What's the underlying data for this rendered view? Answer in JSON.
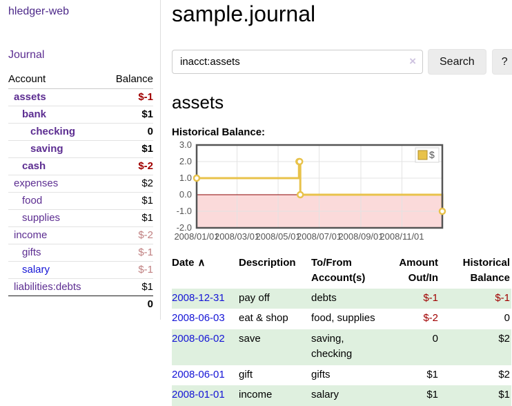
{
  "app": {
    "brand": "hledger-web"
  },
  "sidebar": {
    "journal_link": "Journal",
    "account_header": "Account",
    "balance_header": "Balance",
    "rows": [
      {
        "name": "assets",
        "balance": "$-1"
      },
      {
        "name": "bank",
        "balance": "$1"
      },
      {
        "name": "checking",
        "balance": "0"
      },
      {
        "name": "saving",
        "balance": "$1"
      },
      {
        "name": "cash",
        "balance": "$-2"
      },
      {
        "name": "expenses",
        "balance": "$2"
      },
      {
        "name": "food",
        "balance": "$1"
      },
      {
        "name": "supplies",
        "balance": "$1"
      },
      {
        "name": "income",
        "balance": "$-2"
      },
      {
        "name": "gifts",
        "balance": "$-1"
      },
      {
        "name": "salary",
        "balance": "$-1"
      },
      {
        "name": "liabilities:debts",
        "balance": "$1"
      }
    ],
    "total": "0"
  },
  "main": {
    "title": "sample.journal",
    "search": {
      "value": "inacct:assets",
      "clear_icon": "×",
      "search_button": "Search",
      "help_button": "?"
    },
    "account_heading": "assets",
    "chart_title": "Historical Balance:"
  },
  "register": {
    "headers": {
      "date": "Date",
      "sort_icon": "∧",
      "description": "Description",
      "accounts": "To/From Account(s)",
      "amount": "Amount Out/In",
      "balance": "Historical Balance"
    },
    "rows": [
      {
        "date": "2008-12-31",
        "description": "pay off",
        "accounts": "debts",
        "amount": "$-1",
        "balance": "$-1"
      },
      {
        "date": "2008-06-03",
        "description": "eat & shop",
        "accounts": "food, supplies",
        "amount": "$-2",
        "balance": "0"
      },
      {
        "date": "2008-06-02",
        "description": "save",
        "accounts": "saving, checking",
        "amount": "0",
        "balance": "$2"
      },
      {
        "date": "2008-06-01",
        "description": "gift",
        "accounts": "gifts",
        "amount": "$1",
        "balance": "$2"
      },
      {
        "date": "2008-01-01",
        "description": "income",
        "accounts": "salary",
        "amount": "$1",
        "balance": "$1"
      }
    ]
  },
  "chart_data": {
    "type": "line",
    "step": true,
    "title": "Historical Balance",
    "x_start": "2008-01-01",
    "x_end": "2008-12-31",
    "ylim": [
      -2,
      3
    ],
    "y_ticks": [
      "3.0",
      "2.0",
      "1.0",
      "0.0",
      "-1.0",
      "-2.0"
    ],
    "x_ticks": [
      "2008/01/01",
      "2008/03/01",
      "2008/05/01",
      "2008/07/01",
      "2008/09/01",
      "2008/11/01"
    ],
    "series": [
      {
        "name": "$",
        "color": "#e8c24a",
        "points": [
          [
            "2008-01-01",
            1
          ],
          [
            "2008-06-01",
            2
          ],
          [
            "2008-06-02",
            2
          ],
          [
            "2008-06-03",
            0
          ],
          [
            "2008-12-31",
            -1
          ]
        ]
      }
    ],
    "legend_label": "$",
    "legend_position": "top-right",
    "grid": true,
    "negative_region_color": "#fbdada",
    "zero_line_color": "#8b0000",
    "border_color": "#545454",
    "tick_label_color": "#545454"
  },
  "colors": {
    "accent_purple": "#5c2d91",
    "link_blue": "#1414d6",
    "negative_dark": "#a00000",
    "negative_soft": "#c08081",
    "row_green": "#dff0df",
    "chart_gold": "#e8c24a"
  }
}
